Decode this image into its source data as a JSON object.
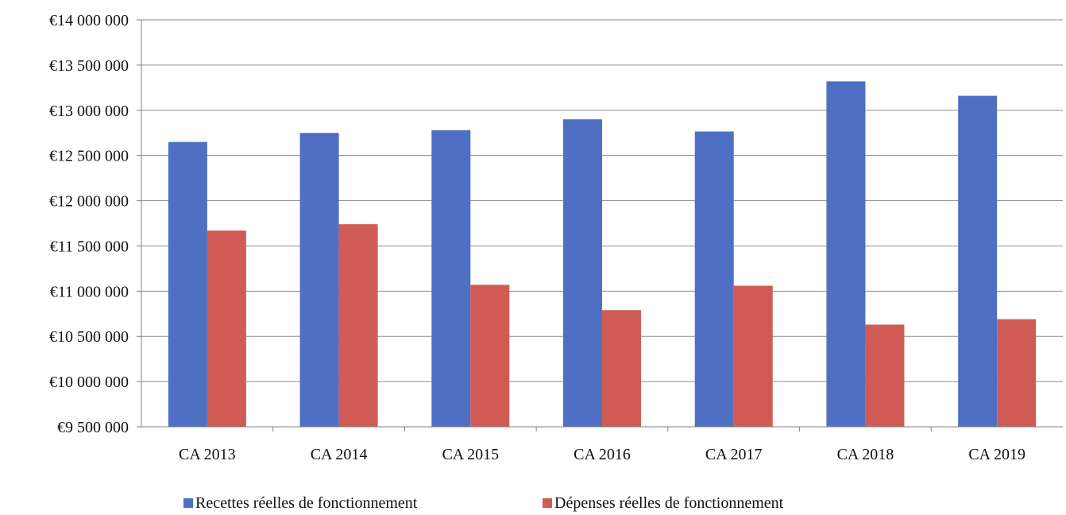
{
  "chart_data": {
    "type": "bar",
    "categories": [
      "CA 2013",
      "CA 2014",
      "CA 2015",
      "CA 2016",
      "CA 2017",
      "CA 2018",
      "CA 2019"
    ],
    "series": [
      {
        "name": "Recettes réelles de fonctionnement",
        "color": "#4f6fc4",
        "values": [
          12650000,
          12750000,
          12780000,
          12900000,
          12765000,
          13320000,
          13160000
        ]
      },
      {
        "name": "Dépenses réelles de fonctionnement",
        "color": "#d05b55",
        "values": [
          11670000,
          11740000,
          11070000,
          10790000,
          11060000,
          10630000,
          10690000
        ]
      }
    ],
    "y_ticks": [
      "€9 500 000",
      "€10 000 000",
      "€10 500 000",
      "€11 000 000",
      "€11 500 000",
      "€12 000 000",
      "€12 500 000",
      "€13 000 000",
      "€13 500 000",
      "€14 000 000"
    ],
    "ylim": [
      9500000,
      14000000
    ],
    "ytick_step": 500000,
    "grid": true,
    "legend_position": "bottom"
  }
}
